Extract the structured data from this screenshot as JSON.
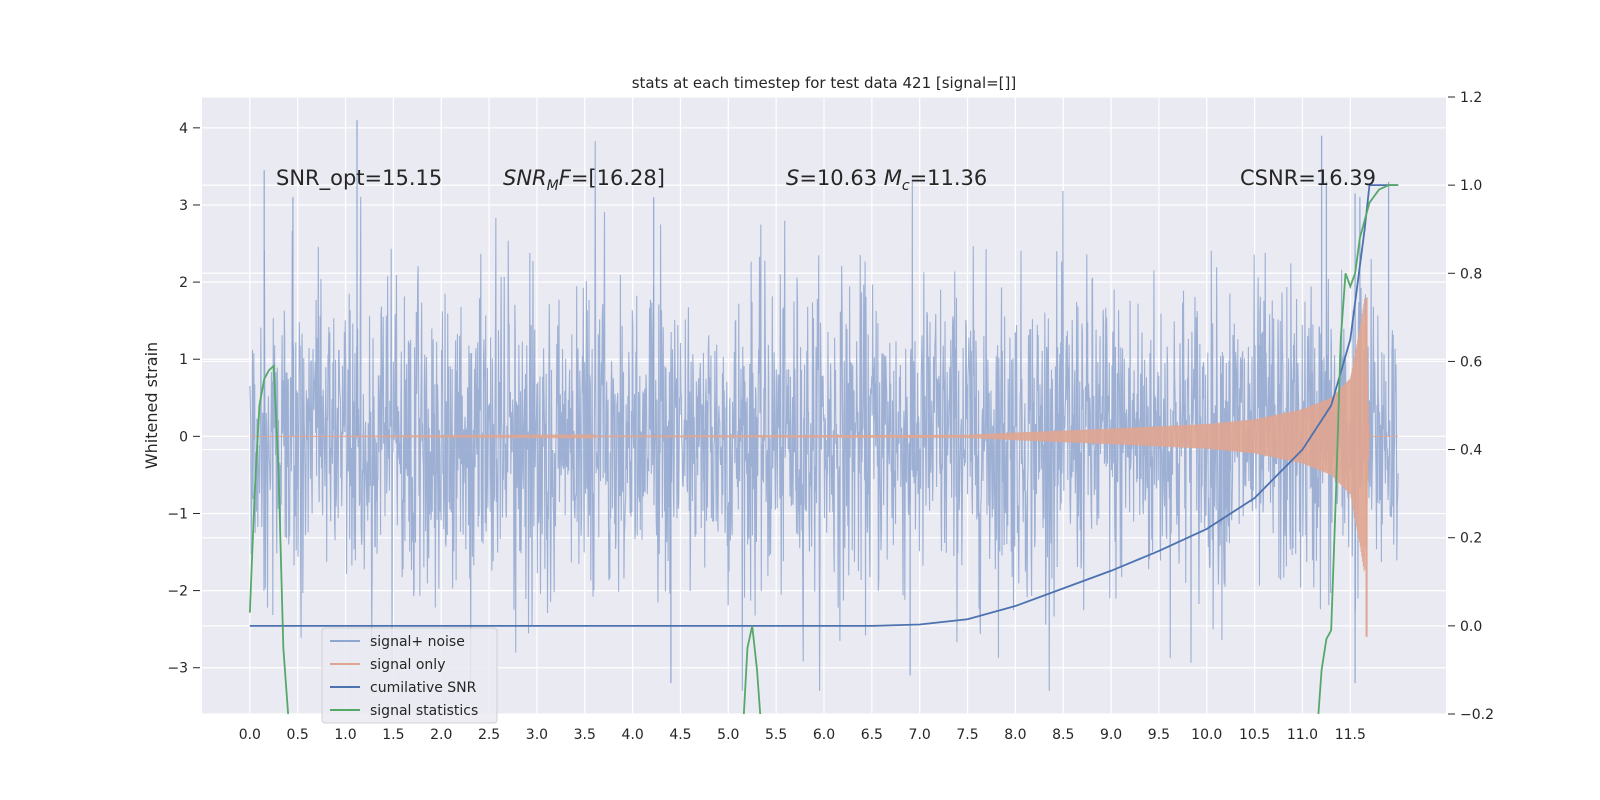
{
  "chart_data": {
    "type": "line",
    "title": "stats at each timestep for test data 421 [signal=[]]",
    "xlabel": "",
    "ylabel": "Whitened strain",
    "xlim": [
      -0.5,
      12.5
    ],
    "ylim": [
      -3.6,
      4.4
    ],
    "y2lim": [
      -0.2,
      1.2
    ],
    "grid": true,
    "x_ticks": [
      "0.0",
      "0.5",
      "1.0",
      "1.5",
      "2.0",
      "2.5",
      "3.0",
      "3.5",
      "4.0",
      "4.5",
      "5.0",
      "5.5",
      "6.0",
      "6.5",
      "7.0",
      "7.5",
      "8.0",
      "8.5",
      "9.0",
      "9.5",
      "10.0",
      "10.5",
      "11.0",
      "11.5"
    ],
    "y_ticks": [
      "4",
      "3",
      "2",
      "1",
      "0",
      "−1",
      "−2",
      "−3"
    ],
    "y2_ticks": [
      "1.2",
      "1.0",
      "0.8",
      "0.6",
      "0.4",
      "0.2",
      "0.0",
      "−0.2"
    ],
    "annotations": {
      "snr_opt": "SNR_opt=15.15",
      "snr_mf_main": "SNR",
      "snr_mf_sub": "M",
      "snr_mf_rest": "F=[16.28]",
      "s_label": "S",
      "s_value": "=10.63 ",
      "mc_label": "M",
      "mc_sub": "c",
      "mc_value": "=11.36",
      "csnr": "CSNR=16.39"
    },
    "legend": {
      "position": "lower-left",
      "entries": [
        {
          "label": "signal+ noise",
          "color": "#8fa6cf"
        },
        {
          "label": "signal only",
          "color": "#e0a590"
        },
        {
          "label": "cumilative SNR",
          "color": "#4c72b0"
        },
        {
          "label": "signal statistics",
          "color": "#55a868"
        }
      ]
    },
    "series": [
      {
        "name": "signal+ noise",
        "axis": "left",
        "x_range": [
          0,
          12
        ],
        "typical_amplitude": 1.4,
        "max_value": 4.1,
        "min_value": -3.3,
        "color": "#8fa6cf"
      },
      {
        "name": "signal only",
        "axis": "left",
        "x_range": [
          0,
          12
        ],
        "envelope_x": [
          0,
          7.5,
          8,
          9,
          10,
          10.5,
          11,
          11.3,
          11.5,
          11.6,
          11.65,
          11.7,
          12
        ],
        "envelope_y": [
          0.0,
          0.02,
          0.05,
          0.1,
          0.16,
          0.22,
          0.35,
          0.5,
          0.75,
          1.4,
          1.8,
          0.0,
          0.0
        ],
        "color": "#e0a590"
      },
      {
        "name": "cumilative SNR",
        "axis": "right",
        "x": [
          0,
          1,
          2,
          3,
          4,
          5,
          6,
          6.5,
          7.0,
          7.5,
          8.0,
          8.5,
          9.0,
          9.5,
          10.0,
          10.5,
          11.0,
          11.3,
          11.5,
          11.65,
          11.7,
          12.0
        ],
        "values": [
          0.0,
          0.0,
          0.0,
          0.0,
          0.0,
          0.0,
          0.0,
          0.0,
          0.003,
          0.015,
          0.045,
          0.085,
          0.125,
          0.17,
          0.22,
          0.29,
          0.4,
          0.5,
          0.65,
          0.9,
          1.0,
          1.0
        ],
        "color": "#4c72b0"
      },
      {
        "name": "signal statistics",
        "axis": "right",
        "x": [
          0.0,
          0.05,
          0.1,
          0.15,
          0.2,
          0.25,
          0.3,
          0.35,
          0.4,
          0.45,
          5.15,
          5.2,
          5.25,
          5.3,
          5.35,
          11.15,
          11.2,
          11.25,
          11.3,
          11.35,
          11.4,
          11.45,
          11.5,
          11.55,
          11.6,
          11.65,
          11.7,
          11.8,
          11.9,
          12.0
        ],
        "values": [
          0.03,
          0.3,
          0.5,
          0.56,
          0.58,
          0.59,
          0.35,
          -0.05,
          -0.2,
          -0.3,
          -0.25,
          -0.05,
          0.0,
          -0.1,
          -0.25,
          -0.25,
          -0.1,
          -0.03,
          -0.01,
          0.3,
          0.65,
          0.8,
          0.77,
          0.8,
          0.88,
          0.92,
          0.96,
          0.99,
          1.0,
          1.0
        ],
        "color": "#55a868"
      }
    ]
  }
}
